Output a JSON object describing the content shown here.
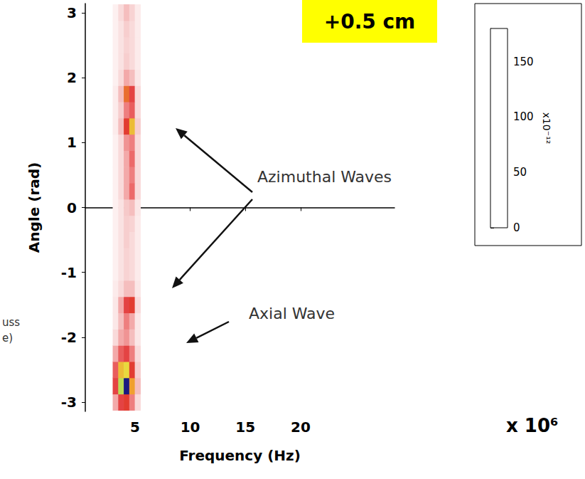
{
  "chart_data": {
    "type": "heatmap",
    "panel_label": "+0.5 cm",
    "x_label": "Frequency (Hz)",
    "x_multiplier": "x 10⁶",
    "y_label": "Angle (rad)",
    "xlim": [
      0.5,
      28.5
    ],
    "xticks": [
      5,
      10,
      15,
      20
    ],
    "ylim": [
      -3.14,
      3.14
    ],
    "yticks": [
      -3,
      -2,
      -1,
      0,
      1,
      2,
      3
    ],
    "x": [
      3.25,
      3.75,
      4.25,
      4.75,
      5.25
    ],
    "y": [
      -3,
      -2.75,
      -2.5,
      -2.25,
      -2,
      -1.75,
      -1.5,
      -1.25,
      -1,
      -0.75,
      -0.5,
      -0.25,
      0,
      0.25,
      0.5,
      0.75,
      1,
      1.25,
      1.5,
      1.75,
      2,
      2.25,
      2.5,
      2.75,
      3
    ],
    "cells": [
      [
        30,
        60,
        70,
        40,
        15
      ],
      [
        60,
        120,
        180,
        90,
        25
      ],
      [
        50,
        100,
        110,
        70,
        20
      ],
      [
        30,
        50,
        60,
        40,
        15
      ],
      [
        15,
        30,
        35,
        25,
        10
      ],
      [
        10,
        25,
        40,
        30,
        10
      ],
      [
        10,
        30,
        60,
        70,
        15
      ],
      [
        8,
        15,
        25,
        25,
        10
      ],
      [
        6,
        12,
        18,
        15,
        8
      ],
      [
        6,
        12,
        18,
        15,
        8
      ],
      [
        6,
        12,
        20,
        15,
        8
      ],
      [
        6,
        12,
        20,
        18,
        8
      ],
      [
        6,
        12,
        22,
        25,
        10
      ],
      [
        6,
        15,
        30,
        45,
        15
      ],
      [
        6,
        15,
        30,
        40,
        15
      ],
      [
        6,
        15,
        30,
        45,
        15
      ],
      [
        6,
        15,
        35,
        40,
        15
      ],
      [
        8,
        25,
        70,
        100,
        20
      ],
      [
        8,
        20,
        40,
        50,
        15
      ],
      [
        8,
        25,
        80,
        60,
        15
      ],
      [
        6,
        15,
        30,
        25,
        10
      ],
      [
        6,
        12,
        20,
        15,
        8
      ],
      [
        6,
        12,
        18,
        15,
        8
      ],
      [
        6,
        12,
        20,
        15,
        8
      ],
      [
        6,
        15,
        25,
        18,
        8
      ]
    ],
    "colorbar": {
      "range": [
        0,
        180
      ],
      "ticks": [
        0,
        50,
        100,
        150
      ],
      "label": "x10⁻¹²"
    },
    "annotations": [
      "Azimuthal Waves",
      "Axial Wave"
    ],
    "edge_texts": [
      "uss",
      "e)"
    ]
  }
}
